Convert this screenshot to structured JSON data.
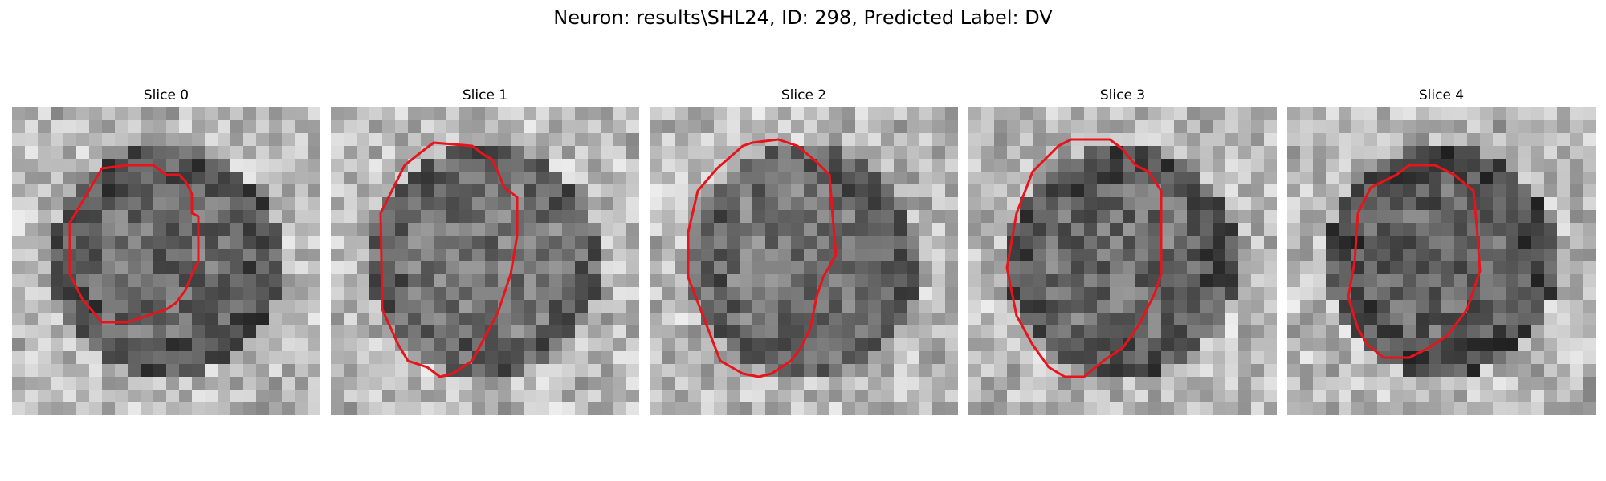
{
  "figure": {
    "title": "Neuron: results\\SHL24, ID: 298, Predicted Label: DV"
  },
  "colors": {
    "contour": "#e8141b",
    "background": "#ffffff"
  },
  "slices": [
    {
      "title": "Slice 0",
      "seed": 11,
      "darkness": 0.72,
      "annulus": 0.45
    },
    {
      "title": "Slice 1",
      "seed": 23,
      "darkness": 0.55,
      "annulus": 0.55
    },
    {
      "title": "Slice 2",
      "seed": 37,
      "darkness": 0.55,
      "annulus": 0.45
    },
    {
      "title": "Slice 3",
      "seed": 41,
      "darkness": 0.7,
      "annulus": 0.6
    },
    {
      "title": "Slice 4",
      "seed": 53,
      "darkness": 0.85,
      "annulus": 0.35
    }
  ]
}
